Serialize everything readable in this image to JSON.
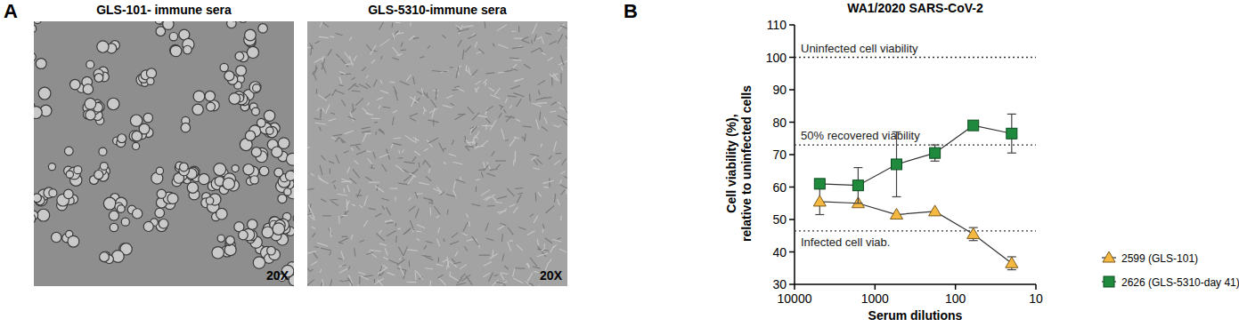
{
  "panel_labels": [
    "A",
    "B"
  ],
  "images": [
    {
      "title": "GLS-101- immune sera",
      "magnification": "20X"
    },
    {
      "title": "GLS-5310-immune sera",
      "magnification": "20X"
    }
  ],
  "chart_data": {
    "type": "line",
    "title": "WA1/2020 SARS-CoV-2",
    "x_label": "Serum dilutions",
    "y_label": [
      "Cell viability (%),",
      "relative to uninfected cells"
    ],
    "log": "x",
    "x": [
      4860,
      1620,
      540,
      180,
      60,
      20
    ],
    "xlim": [
      10000,
      10
    ],
    "xticks": [
      10000,
      1000,
      100,
      10
    ],
    "ylim": [
      30,
      110
    ],
    "yticks": [
      30,
      40,
      50,
      60,
      70,
      80,
      90,
      100,
      110
    ],
    "reference_lines": [
      {
        "value": 100,
        "label": "Uninfected cell viability"
      },
      {
        "value": 73,
        "label": "50% recovered viability"
      },
      {
        "value": 46.5,
        "label": "Infected cell viab."
      }
    ],
    "legend": "right",
    "series": [
      {
        "name": "2599 (GLS-101)",
        "color": "#f5b942",
        "marker": "triangle",
        "values": [
          55.5,
          55,
          51.5,
          52.5,
          45.5,
          36.5
        ],
        "errors": [
          4,
          null,
          null,
          null,
          2,
          2
        ]
      },
      {
        "name": "2626 (GLS-5310-day 41)",
        "color": "#1f8a3e",
        "marker": "square",
        "values": [
          61,
          60.5,
          67,
          70.5,
          79,
          76.5
        ],
        "errors": [
          1,
          5.5,
          10,
          2.5,
          null,
          6
        ]
      }
    ]
  }
}
